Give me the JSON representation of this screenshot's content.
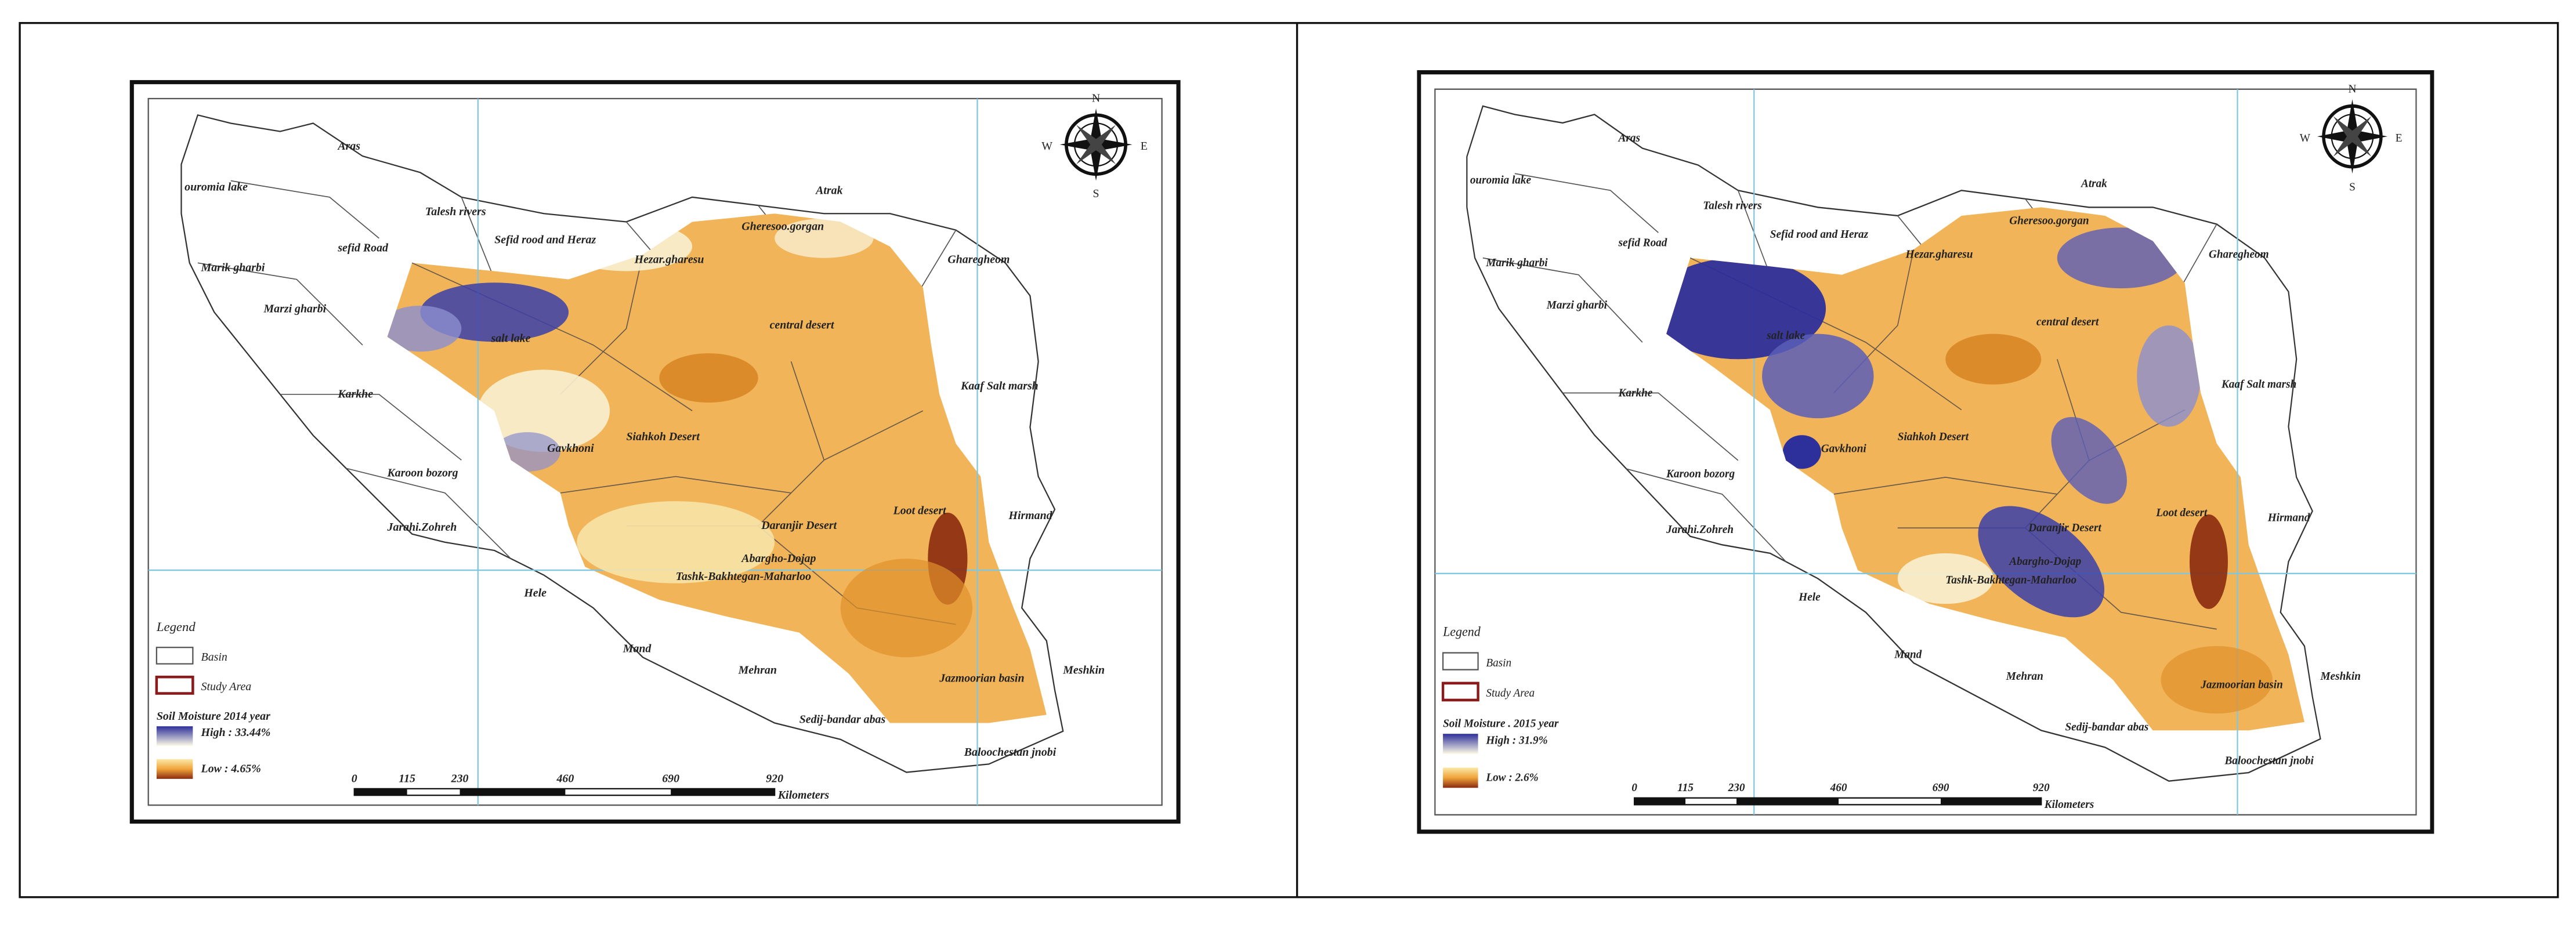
{
  "panels": [
    {
      "basins": [
        "Aras",
        "ouromia lake",
        "Talesh rivers",
        "sefid Road",
        "Sefid rood and Heraz",
        "Hezar.gharesu",
        "Gheresoo.gorgan",
        "Atrak",
        "Gharegheom",
        "Marik gharbi",
        "Marzi gharbi",
        "salt lake",
        "central desert",
        "Karkhe",
        "Kaaf Salt marsh",
        "Gavkhoni",
        "Siahkoh Desert",
        "Karoon bozorg",
        "Loot desert",
        "Hirmand",
        "Daranjir Desert",
        "Jarahi.Zohreh",
        "Abargho-Dojap",
        "Tashk-Bakhtegan-Maharloo",
        "Hele",
        "Mand",
        "Mehran",
        "Jazmoorian basin",
        "Meshkin",
        "Sedij-bandar abas",
        "Baloochestan jnobi"
      ],
      "compass": {
        "n": "N",
        "s": "S",
        "e": "E",
        "w": "W"
      },
      "legend": {
        "title": "Legend",
        "basin": "Basin",
        "study_area": "Study Area",
        "soil_title": "Soil Moisture 2014 year",
        "high": "High : 33.44%",
        "low": "Low : 4.65%"
      },
      "scale": {
        "ticks": [
          0,
          115,
          230,
          460,
          690,
          920
        ],
        "unit": "Kilometers"
      }
    },
    {
      "basins": [
        "Aras",
        "ouromia lake",
        "Talesh rivers",
        "sefid Road",
        "Sefid rood and Heraz",
        "Hezar.gharesu",
        "Gheresoo.gorgan",
        "Atrak",
        "Gharegheom",
        "Marik gharbi",
        "Marzi gharbi",
        "salt lake",
        "central desert",
        "Karkhe",
        "Kaaf Salt marsh",
        "Gavkhoni",
        "Siahkoh Desert",
        "Karoon bozorg",
        "Loot desert",
        "Hirmand",
        "Daranjir Desert",
        "Jarahi.Zohreh",
        "Abargho-Dojap",
        "Tashk-Bakhtegan-Maharloo",
        "Hele",
        "Mand",
        "Mehran",
        "Jazmoorian basin",
        "Meshkin",
        "Sedij-bandar abas",
        "Baloochestan jnobi"
      ],
      "compass": {
        "n": "N",
        "s": "S",
        "e": "E",
        "w": "W"
      },
      "legend": {
        "title": "Legend",
        "basin": "Basin",
        "study_area": "Study Area",
        "soil_title": "Soil Moisture . 2015 year",
        "high": "High : 31.9%",
        "low": "Low : 2.6%"
      },
      "scale": {
        "ticks": [
          0,
          115,
          230,
          460,
          690,
          920
        ],
        "unit": "Kilometers"
      }
    }
  ]
}
